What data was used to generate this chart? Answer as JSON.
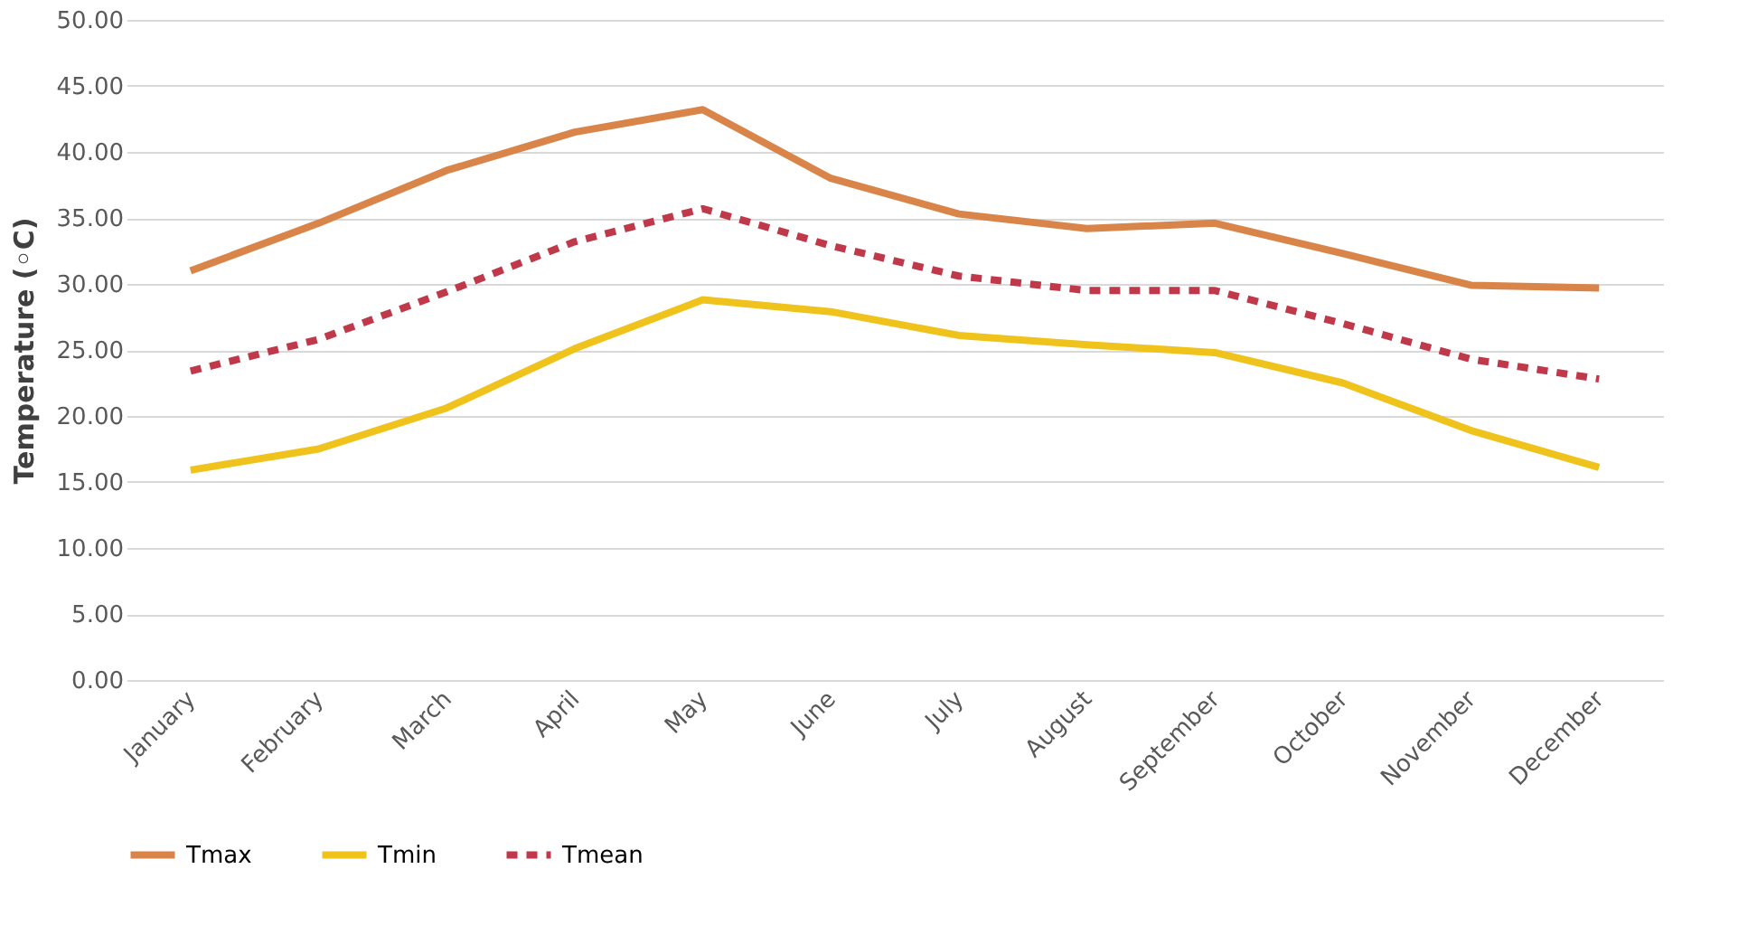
{
  "chart_data": {
    "type": "line",
    "ylabel": "Temperature (◦C)",
    "categories": [
      "January",
      "February",
      "March",
      "April",
      "May",
      "June",
      "July",
      "August",
      "September",
      "October",
      "November",
      "December"
    ],
    "series": [
      {
        "name": "Tmax",
        "color": "#d9854a",
        "line_style": "solid",
        "values": [
          31.0,
          34.6,
          38.6,
          41.5,
          43.2,
          38.0,
          35.3,
          34.2,
          34.6,
          32.3,
          29.9,
          29.7
        ]
      },
      {
        "name": "Tmin",
        "color": "#f0c21c",
        "line_style": "solid",
        "values": [
          15.9,
          17.5,
          20.6,
          25.1,
          28.8,
          27.9,
          26.1,
          25.4,
          24.8,
          22.5,
          18.9,
          16.1
        ]
      },
      {
        "name": "Tmean",
        "color": "#c0394b",
        "line_style": "dashed",
        "values": [
          23.4,
          25.8,
          29.4,
          33.2,
          35.7,
          32.9,
          30.6,
          29.5,
          29.5,
          27.0,
          24.3,
          22.8
        ]
      }
    ],
    "ylim": [
      0,
      50
    ],
    "yticks": [
      {
        "value": 0,
        "label": "0.00"
      },
      {
        "value": 5,
        "label": "5.00"
      },
      {
        "value": 10,
        "label": "10.00"
      },
      {
        "value": 15,
        "label": "15.00"
      },
      {
        "value": 20,
        "label": "20.00"
      },
      {
        "value": 25,
        "label": "25.00"
      },
      {
        "value": 30,
        "label": "30.00"
      },
      {
        "value": 35,
        "label": "35.00"
      },
      {
        "value": 40,
        "label": "40.00"
      },
      {
        "value": 45,
        "label": "45.00"
      },
      {
        "value": 50,
        "label": "50.00"
      }
    ],
    "grid": "y",
    "legend": "bottom",
    "marker": "none"
  }
}
